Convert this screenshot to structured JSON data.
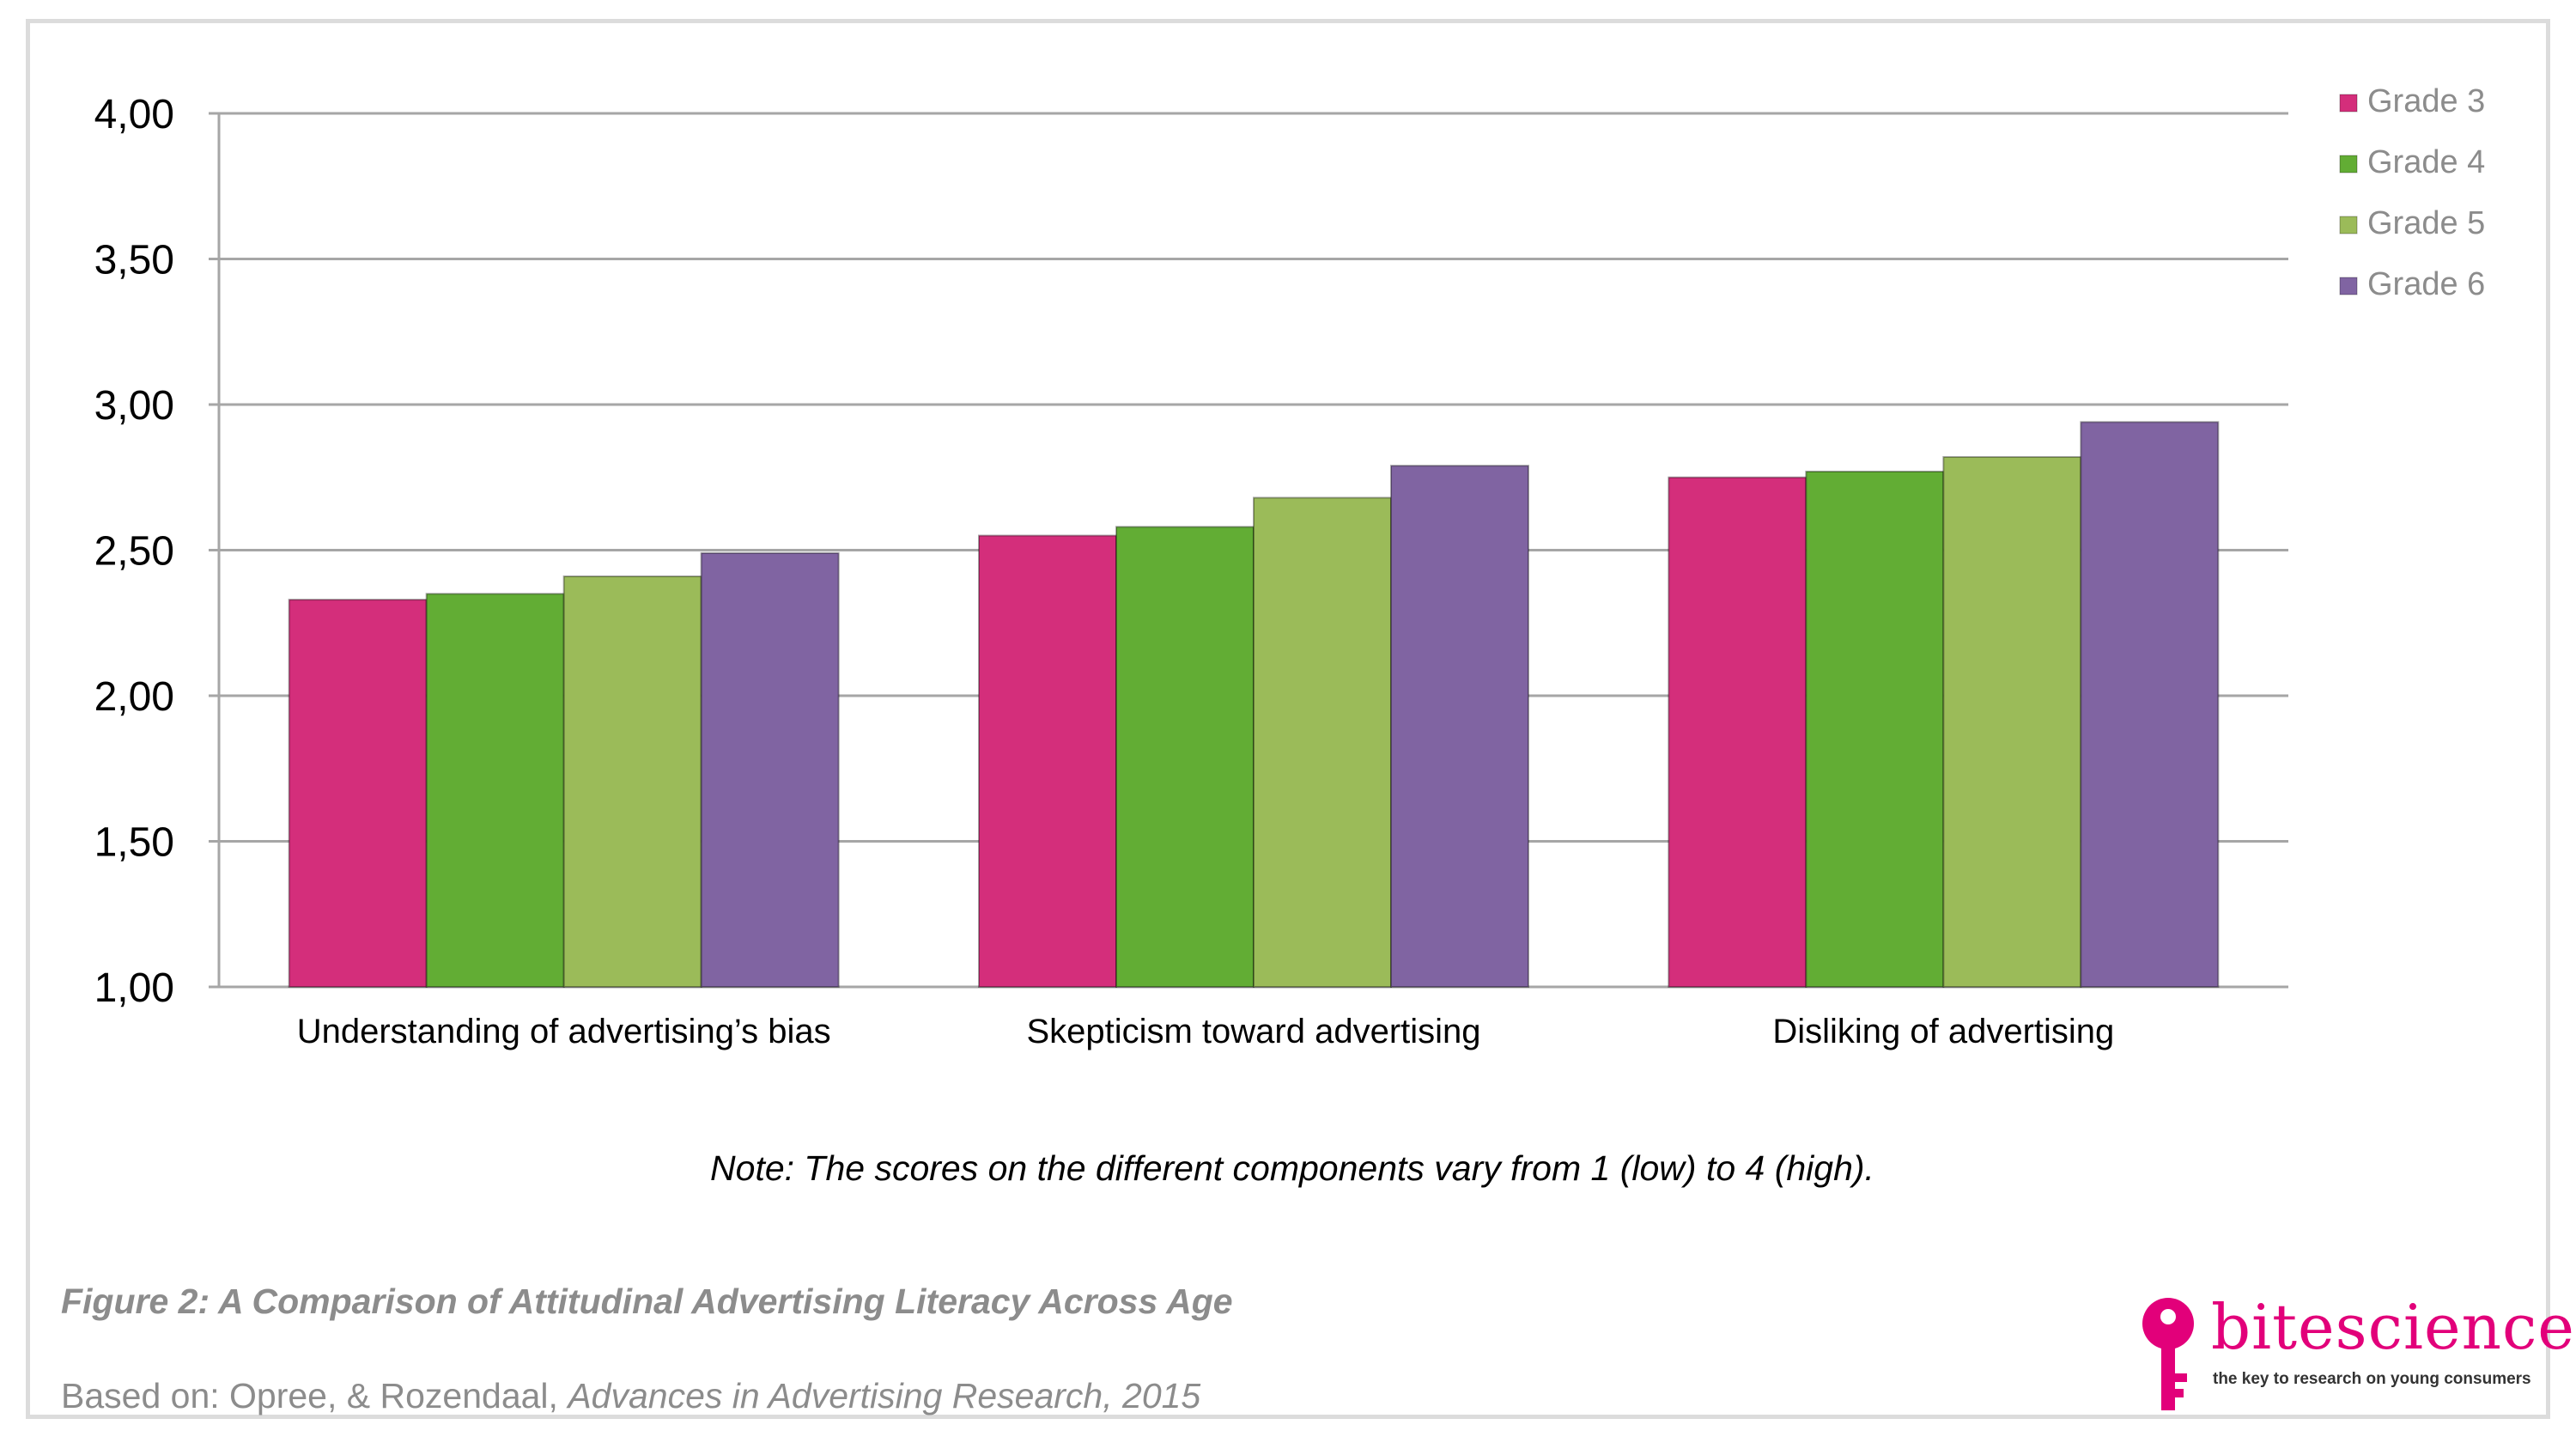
{
  "chart_data": {
    "type": "bar",
    "categories": [
      "Understanding of advertising’s bias",
      "Skepticism toward advertising",
      "Disliking of advertising"
    ],
    "series": [
      {
        "name": "Grade 3",
        "color": "#d42e7b",
        "values": [
          2.33,
          2.55,
          2.75
        ]
      },
      {
        "name": "Grade 4",
        "color": "#62ad34",
        "values": [
          2.35,
          2.58,
          2.77
        ]
      },
      {
        "name": "Grade 5",
        "color": "#9bbb59",
        "values": [
          2.41,
          2.68,
          2.82
        ]
      },
      {
        "name": "Grade 6",
        "color": "#8064a2",
        "values": [
          2.49,
          2.79,
          2.94
        ]
      }
    ],
    "ylim": [
      1.0,
      4.0
    ],
    "yticks": [
      "1,00",
      "1,50",
      "2,00",
      "2,50",
      "3,00",
      "3,50",
      "4,00"
    ],
    "grid": true,
    "legend_position": "top-right"
  },
  "note": "Note: The scores on the different components vary from 1 (low) to 4 (high).",
  "figure_title": "Figure 2: A Comparison of Attitudinal Advertising Literacy Across Age",
  "source": {
    "prefix": "Based on: Opree, & Rozendaal, ",
    "journal": "Advances in Advertising Research, 2015"
  },
  "logo": {
    "name_part1": "bite",
    "name_part2": "science",
    "tagline": "the key to research on young consumers",
    "icon": "key-icon"
  }
}
